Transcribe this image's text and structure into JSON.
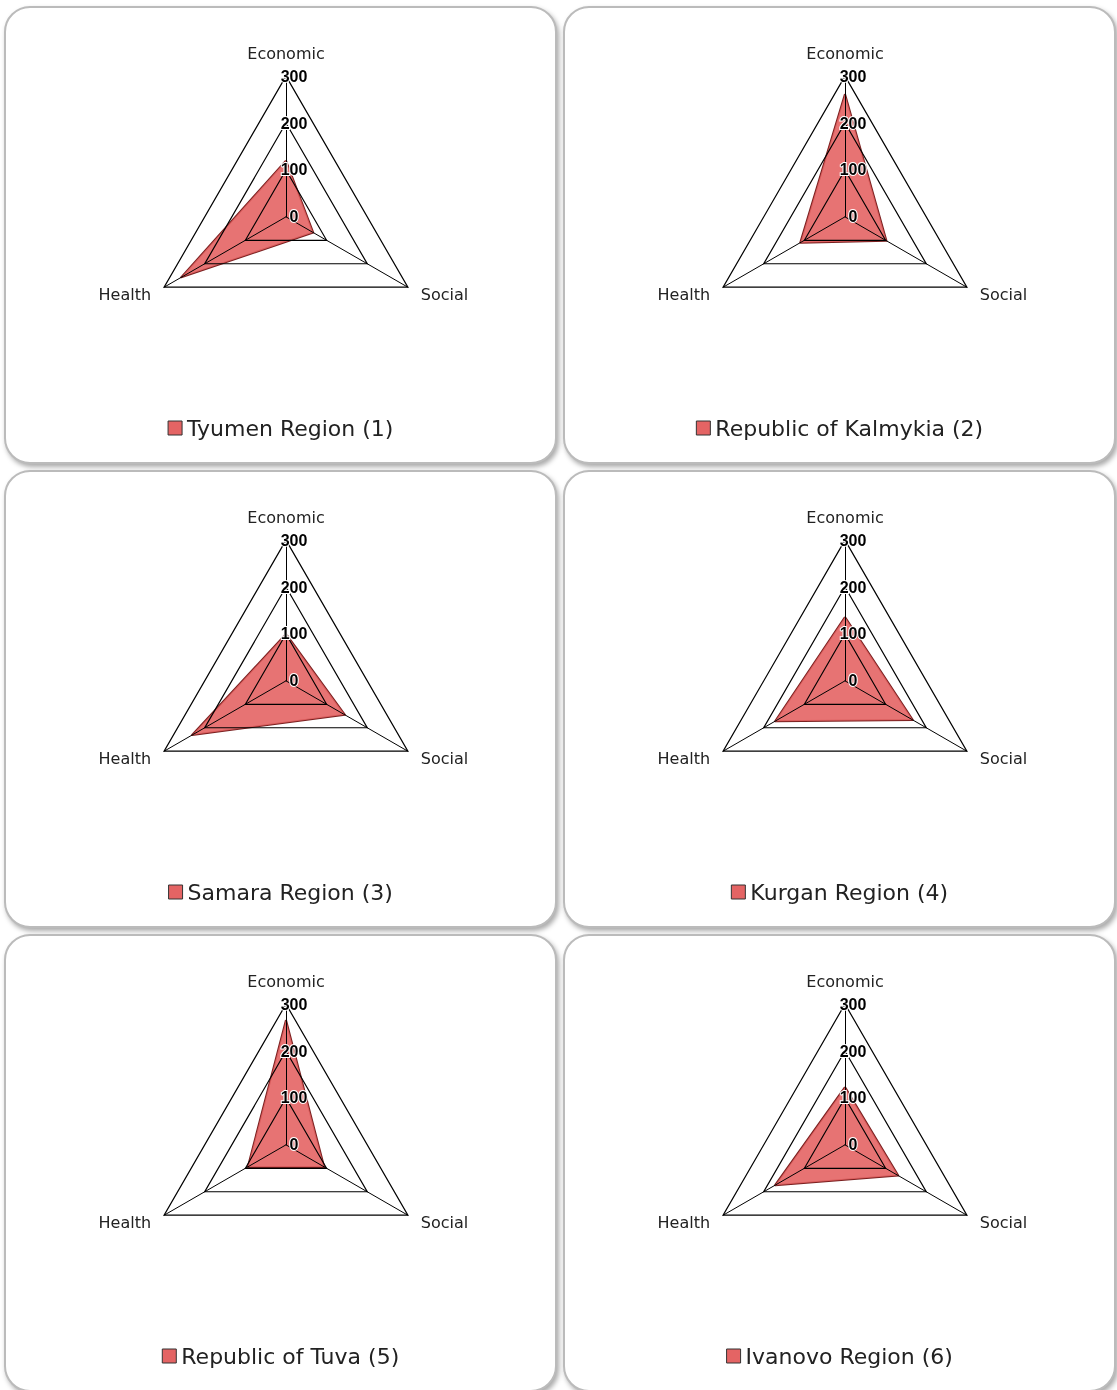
{
  "chart_data": [
    {
      "type": "radar",
      "categories": [
        "Economic",
        "Social",
        "Health"
      ],
      "ylim": [
        0,
        300
      ],
      "yticks": [
        0,
        100,
        200,
        300
      ],
      "legend": "bottom",
      "series": [
        {
          "name": "Tyumen Region (1)",
          "color": "#e46464",
          "values": [
            120,
            67,
            258
          ]
        }
      ]
    },
    {
      "type": "radar",
      "categories": [
        "Economic",
        "Social",
        "Health"
      ],
      "ylim": [
        0,
        300
      ],
      "yticks": [
        0,
        100,
        200,
        300
      ],
      "legend": "bottom",
      "series": [
        {
          "name": "Republic of Kalmykia (2)",
          "color": "#e46464",
          "values": [
            262,
            102,
            110
          ]
        }
      ]
    },
    {
      "type": "radar",
      "categories": [
        "Economic",
        "Social",
        "Health"
      ],
      "ylim": [
        0,
        300
      ],
      "yticks": [
        0,
        100,
        200,
        300
      ],
      "legend": "bottom",
      "series": [
        {
          "name": "Samara Region (3)",
          "color": "#e46464",
          "values": [
            100,
            145,
            231
          ]
        }
      ]
    },
    {
      "type": "radar",
      "categories": [
        "Economic",
        "Social",
        "Health"
      ],
      "ylim": [
        0,
        300
      ],
      "yticks": [
        0,
        100,
        200,
        300
      ],
      "legend": "bottom",
      "series": [
        {
          "name": "Kurgan Region (4)",
          "color": "#e46464",
          "values": [
            136,
            167,
            172
          ]
        }
      ]
    },
    {
      "type": "radar",
      "categories": [
        "Economic",
        "Social",
        "Health"
      ],
      "ylim": [
        0,
        300
      ],
      "yticks": [
        0,
        100,
        200,
        300
      ],
      "legend": "bottom",
      "series": [
        {
          "name": "Republic of Tuva (5)",
          "color": "#e46464",
          "values": [
            266,
            94,
            94
          ]
        }
      ]
    },
    {
      "type": "radar",
      "categories": [
        "Economic",
        "Social",
        "Health"
      ],
      "ylim": [
        0,
        300
      ],
      "yticks": [
        0,
        100,
        200,
        300
      ],
      "legend": "bottom",
      "series": [
        {
          "name": "Ivanovo Region (6)",
          "color": "#e46464",
          "values": [
            123,
            131,
            172
          ]
        }
      ]
    }
  ]
}
